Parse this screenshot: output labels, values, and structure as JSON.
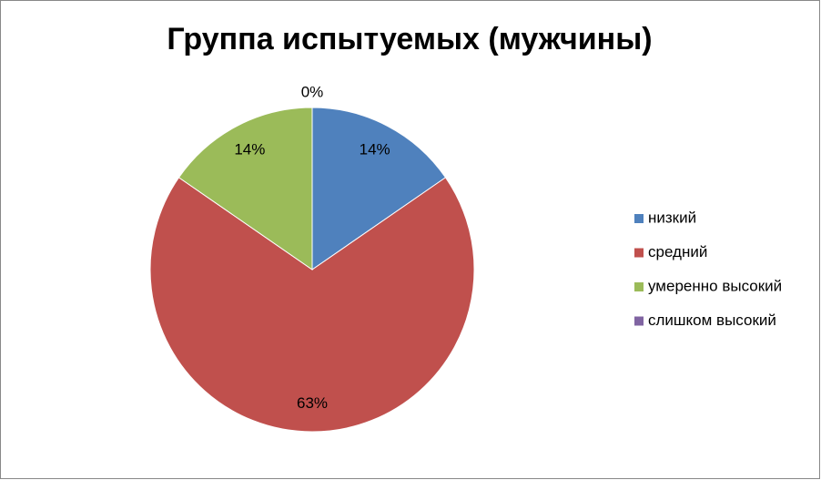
{
  "chart_data": {
    "type": "pie",
    "title": "Группа испытуемых (мужчины)",
    "categories": [
      "низкий",
      "средний",
      "умеренно высокий",
      "слишком высокий"
    ],
    "values": [
      14,
      63,
      14,
      0
    ],
    "value_labels": [
      "14%",
      "63%",
      "14%",
      "0%"
    ],
    "colors": [
      "#4f81bd",
      "#c0504d",
      "#9bbb59",
      "#8064a2"
    ],
    "legend": "right"
  }
}
